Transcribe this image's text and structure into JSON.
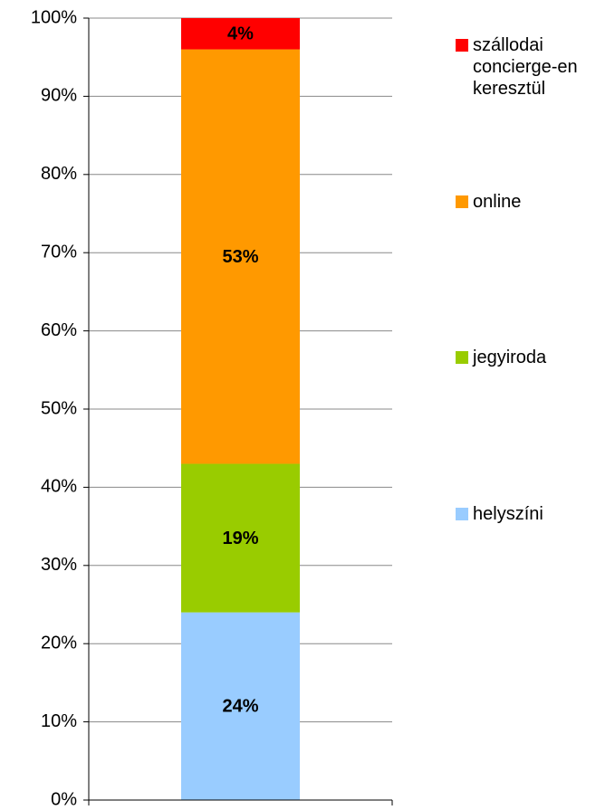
{
  "chart_data": {
    "type": "stacked_bar",
    "categories": [
      null
    ],
    "series": [
      {
        "name": "helyszíni",
        "color": "#99ccff",
        "values": [
          24
        ],
        "value_labels": [
          "24%"
        ]
      },
      {
        "name": "jegyiroda",
        "color": "#99cc00",
        "values": [
          19
        ],
        "value_labels": [
          "19%"
        ]
      },
      {
        "name": "online",
        "color": "#ff9900",
        "values": [
          53
        ],
        "value_labels": [
          "53%"
        ]
      },
      {
        "name": "szállodai concierge-en keresztül",
        "color": "#ff0000",
        "values": [
          4
        ],
        "value_labels": [
          "4%"
        ]
      }
    ],
    "ylim": [
      0,
      100
    ],
    "yticks": [
      {
        "value": 0,
        "label": "0%"
      },
      {
        "value": 10,
        "label": "10%"
      },
      {
        "value": 20,
        "label": "20%"
      },
      {
        "value": 30,
        "label": "30%"
      },
      {
        "value": 40,
        "label": "40%"
      },
      {
        "value": 50,
        "label": "50%"
      },
      {
        "value": 60,
        "label": "60%"
      },
      {
        "value": 70,
        "label": "70%"
      },
      {
        "value": 80,
        "label": "80%"
      },
      {
        "value": 90,
        "label": "90%"
      },
      {
        "value": 100,
        "label": "100%"
      }
    ],
    "grid": true,
    "legend": "right"
  }
}
